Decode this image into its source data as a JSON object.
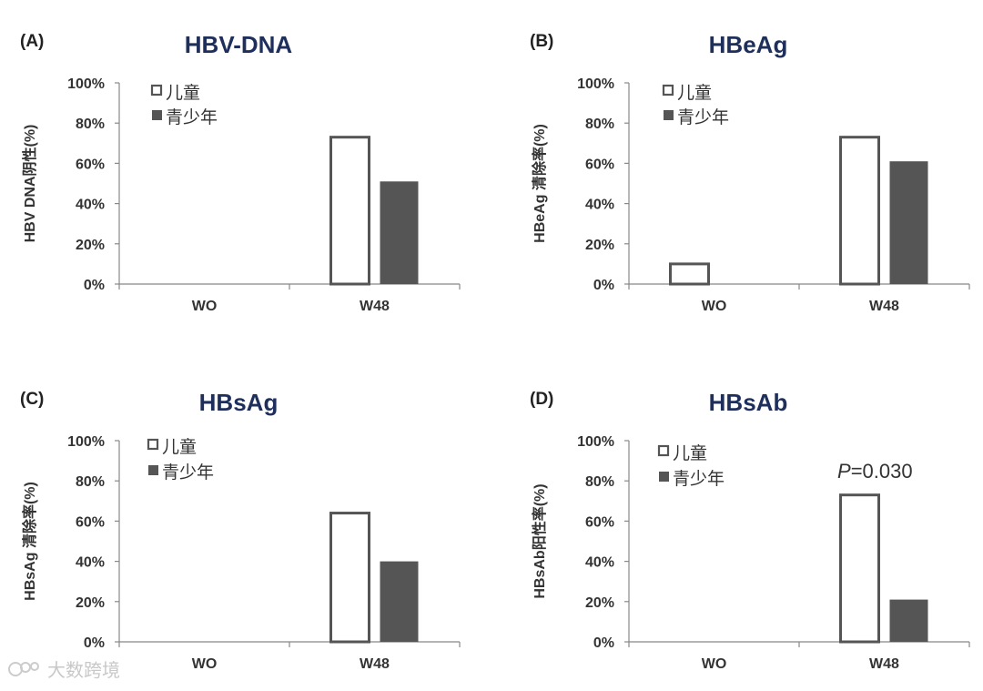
{
  "colors": {
    "children_stroke": "#555555",
    "children_fill": "#ffffff",
    "teen_fill": "#555555",
    "title": "#1f2f5c",
    "axis": "#888888",
    "text": "#333333"
  },
  "legend": {
    "children": "儿童",
    "teen": "青少年"
  },
  "watermark": "大数跨境",
  "chart_data": [
    {
      "type": "bar",
      "panel": "(A)",
      "title": "HBV-DNA",
      "ylabel": "HBV DNA阴性(%)",
      "categories": [
        "WO",
        "W48"
      ],
      "series": [
        {
          "name": "儿童",
          "values": [
            0,
            73
          ]
        },
        {
          "name": "青少年",
          "values": [
            0,
            51
          ]
        }
      ],
      "ylim": [
        0,
        100
      ],
      "yticks": [
        "0%",
        "20%",
        "40%",
        "60%",
        "80%",
        "100%"
      ],
      "annotation": null
    },
    {
      "type": "bar",
      "panel": "(B)",
      "title": "HBeAg",
      "ylabel": "HBeAg 清除率(%)",
      "categories": [
        "WO",
        "W48"
      ],
      "series": [
        {
          "name": "儿童",
          "values": [
            10,
            73
          ]
        },
        {
          "name": "青少年",
          "values": [
            0,
            61
          ]
        }
      ],
      "ylim": [
        0,
        100
      ],
      "yticks": [
        "0%",
        "20%",
        "40%",
        "60%",
        "80%",
        "100%"
      ],
      "annotation": null
    },
    {
      "type": "bar",
      "panel": "(C)",
      "title": "HBsAg",
      "ylabel": "HBsAg 清除率(%)",
      "categories": [
        "WO",
        "W48"
      ],
      "series": [
        {
          "name": "儿童",
          "values": [
            0,
            64
          ]
        },
        {
          "name": "青少年",
          "values": [
            0,
            40
          ]
        }
      ],
      "ylim": [
        0,
        100
      ],
      "yticks": [
        "0%",
        "20%",
        "40%",
        "60%",
        "80%",
        "100%"
      ],
      "annotation": null
    },
    {
      "type": "bar",
      "panel": "(D)",
      "title": "HBsAb",
      "ylabel": "HBsAb阳性率(%)",
      "categories": [
        "WO",
        "W48"
      ],
      "series": [
        {
          "name": "儿童",
          "values": [
            0,
            73
          ]
        },
        {
          "name": "青少年",
          "values": [
            0,
            21
          ]
        }
      ],
      "ylim": [
        0,
        100
      ],
      "yticks": [
        "0%",
        "20%",
        "40%",
        "60%",
        "80%",
        "100%"
      ],
      "annotation": {
        "italic": "P",
        "text": "=0.030"
      }
    }
  ]
}
